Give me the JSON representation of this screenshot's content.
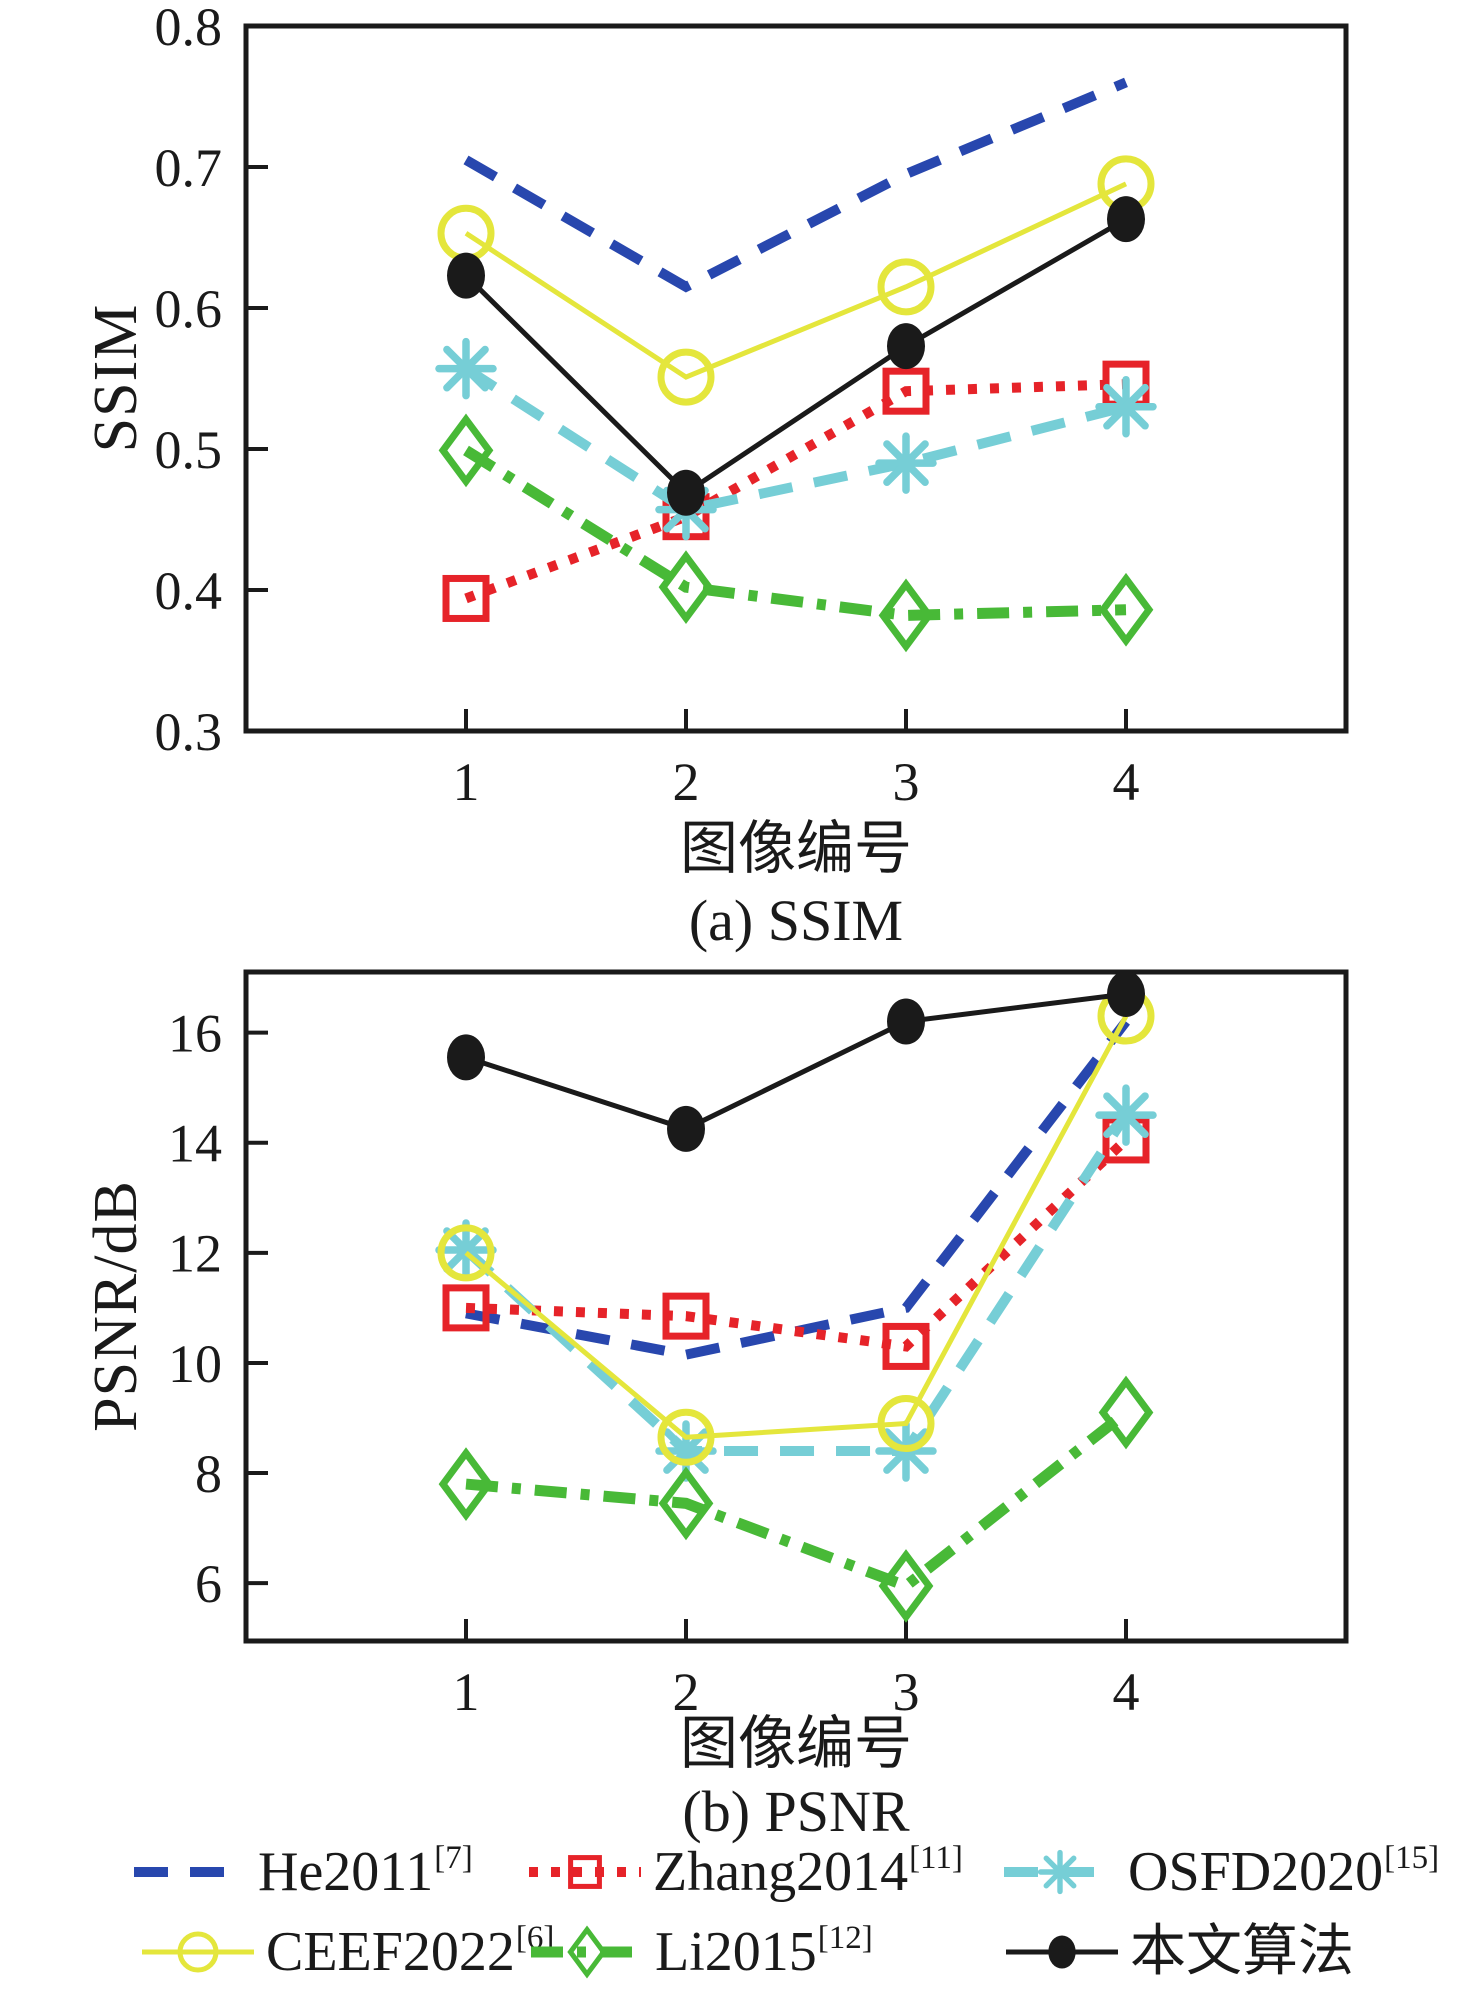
{
  "chart_data": [
    {
      "type": "line",
      "title": "(a) SSIM",
      "xlabel": "图像编号",
      "ylabel": "SSIM",
      "x": [
        1,
        2,
        3,
        4
      ],
      "xlim": [
        0,
        5
      ],
      "ylim": [
        0.3,
        0.8
      ],
      "xticks": [
        "1",
        "2",
        "3",
        "4"
      ],
      "yticks": [
        "0.3",
        "0.4",
        "0.5",
        "0.6",
        "0.7",
        "0.8"
      ],
      "grid": false,
      "series": [
        {
          "id": "he2011",
          "name": "He2011[7]",
          "color": "#2847ae",
          "line": "dashed",
          "marker": "none",
          "values": [
            0.705,
            0.615,
            0.695,
            0.76
          ]
        },
        {
          "id": "zhang2014",
          "name": "Zhang2014[11]",
          "color": "#e62329",
          "line": "dotted",
          "marker": "square",
          "values": [
            0.394,
            0.452,
            0.541,
            0.546
          ]
        },
        {
          "id": "osfd2020",
          "name": "OSFD2020[15]",
          "color": "#76ced6",
          "line": "dashed",
          "marker": "asterisk",
          "values": [
            0.557,
            0.457,
            0.49,
            0.53
          ]
        },
        {
          "id": "ceef2022",
          "name": "CEEF2022[6]",
          "color": "#e4e63c",
          "line": "solid",
          "marker": "circle",
          "values": [
            0.653,
            0.551,
            0.615,
            0.688
          ]
        },
        {
          "id": "li2015",
          "name": "Li2015[12]",
          "color": "#48b937",
          "line": "dashdot",
          "marker": "diamond",
          "values": [
            0.499,
            0.402,
            0.382,
            0.386
          ]
        },
        {
          "id": "proposed",
          "name": "本文算法",
          "color": "#1a1a1a",
          "line": "solid",
          "marker": "dot",
          "values": [
            0.623,
            0.469,
            0.573,
            0.663
          ]
        }
      ]
    },
    {
      "type": "line",
      "title": "(b) PSNR",
      "xlabel": "图像编号",
      "ylabel": "PSNR/dB",
      "x": [
        1,
        2,
        3,
        4
      ],
      "xlim": [
        0,
        5
      ],
      "ylim": [
        4.95,
        17.1
      ],
      "xticks": [
        "1",
        "2",
        "3",
        "4"
      ],
      "yticks": [
        "6",
        "8",
        "10",
        "12",
        "14",
        "16"
      ],
      "grid": false,
      "series": [
        {
          "id": "he2011",
          "name": "He2011[7]",
          "color": "#2847ae",
          "line": "dashed",
          "marker": "none",
          "values": [
            10.9,
            10.15,
            11.0,
            16.2
          ]
        },
        {
          "id": "zhang2014",
          "name": "Zhang2014[11]",
          "color": "#e62329",
          "line": "dotted",
          "marker": "square",
          "values": [
            11.0,
            10.85,
            10.3,
            14.05
          ]
        },
        {
          "id": "osfd2020",
          "name": "OSFD2020[15]",
          "color": "#76ced6",
          "line": "dashed",
          "marker": "asterisk",
          "values": [
            12.05,
            8.4,
            8.4,
            14.5
          ]
        },
        {
          "id": "ceef2022",
          "name": "CEEF2022[6]",
          "color": "#e4e63c",
          "line": "solid",
          "marker": "circle",
          "values": [
            12.0,
            8.65,
            8.9,
            16.3
          ]
        },
        {
          "id": "li2015",
          "name": "Li2015[12]",
          "color": "#48b937",
          "line": "dashdot",
          "marker": "diamond",
          "values": [
            7.8,
            7.45,
            5.95,
            9.1
          ]
        },
        {
          "id": "proposed",
          "name": "本文算法",
          "color": "#1a1a1a",
          "line": "solid",
          "marker": "dot",
          "values": [
            15.55,
            14.25,
            16.2,
            16.7
          ]
        }
      ]
    }
  ],
  "legend": {
    "rows": [
      [
        {
          "id": "he2011",
          "label": "He2011",
          "ref": "[7]"
        },
        {
          "id": "zhang2014",
          "label": "Zhang2014",
          "ref": "[11]"
        },
        {
          "id": "osfd2020",
          "label": "OSFD2020",
          "ref": "[15]"
        }
      ],
      [
        {
          "id": "ceef2022",
          "label": "CEEF2022",
          "ref": "[6]"
        },
        {
          "id": "li2015",
          "label": "Li2015",
          "ref": "[12]"
        },
        {
          "id": "proposed",
          "label": "本文算法",
          "ref": ""
        }
      ]
    ]
  }
}
